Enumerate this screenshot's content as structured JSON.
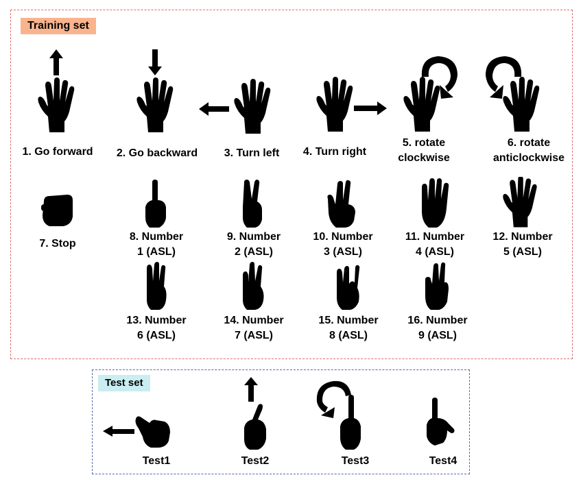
{
  "training": {
    "title": "Training set",
    "gestures": [
      {
        "label": "1. Go forward",
        "icon": "hand-open-up-arrow-icon"
      },
      {
        "label": "2. Go backward",
        "icon": "hand-open-down-arrow-icon"
      },
      {
        "label": "3. Turn left",
        "icon": "hand-open-left-arrow-icon"
      },
      {
        "label": "4. Turn right",
        "icon": "hand-open-right-arrow-icon"
      },
      {
        "label": "5. rotate clockwise",
        "line1": "5. rotate",
        "line2": "clockwise",
        "icon": "hand-open-clockwise-arrow-icon"
      },
      {
        "label": "6. rotate anticlockwise",
        "line1": "6. rotate",
        "line2": "anticlockwise",
        "icon": "hand-open-anticlockwise-arrow-icon"
      },
      {
        "label": "7. Stop",
        "icon": "fist-icon"
      },
      {
        "line1": "8. Number",
        "line2": "1 (ASL)",
        "icon": "asl-1-hand-icon"
      },
      {
        "line1": "9. Number",
        "line2": "2 (ASL)",
        "icon": "asl-2-hand-icon"
      },
      {
        "line1": "10. Number",
        "line2": "3 (ASL)",
        "icon": "asl-3-hand-icon"
      },
      {
        "line1": "11. Number",
        "line2": "4 (ASL)",
        "icon": "asl-4-hand-icon"
      },
      {
        "line1": "12. Number",
        "line2": "5 (ASL)",
        "icon": "asl-5-hand-icon"
      },
      {
        "line1": "13. Number",
        "line2": "6 (ASL)",
        "icon": "asl-6-hand-icon"
      },
      {
        "line1": "14. Number",
        "line2": "7 (ASL)",
        "icon": "asl-7-hand-icon"
      },
      {
        "line1": "15. Number",
        "line2": "8 (ASL)",
        "icon": "asl-8-hand-icon"
      },
      {
        "line1": "16. Number",
        "line2": "9 (ASL)",
        "icon": "asl-9-hand-icon"
      }
    ]
  },
  "test": {
    "title": "Test set",
    "items": [
      {
        "label": "Test1",
        "icon": "pointing-hand-left-arrow-icon"
      },
      {
        "label": "Test2",
        "icon": "pointing-hand-up-arrow-icon"
      },
      {
        "label": "Test3",
        "icon": "pointing-hand-anticlockwise-arrow-icon"
      },
      {
        "label": "Test4",
        "icon": "pointing-hand-icon"
      }
    ]
  }
}
